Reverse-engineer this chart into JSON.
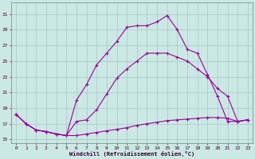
{
  "xlabel": "Windchill (Refroidissement éolien,°C)",
  "bg_color": "#cce8e4",
  "line_color": "#990099",
  "grid_color": "#aacccc",
  "x_ticks": [
    0,
    1,
    2,
    3,
    4,
    5,
    6,
    7,
    8,
    9,
    10,
    11,
    12,
    13,
    14,
    15,
    16,
    17,
    18,
    19,
    20,
    21,
    22,
    23
  ],
  "y_ticks": [
    15,
    17,
    19,
    21,
    23,
    25,
    27,
    29,
    31
  ],
  "xlim": [
    -0.5,
    23.5
  ],
  "ylim": [
    14.5,
    32.5
  ],
  "line1_x": [
    0,
    1,
    2,
    3,
    4,
    5,
    6,
    7,
    8,
    9,
    10,
    11,
    12,
    13,
    14,
    15,
    16,
    17,
    18,
    19,
    20,
    21,
    22,
    23
  ],
  "line1_y": [
    18.2,
    17.0,
    16.2,
    16.0,
    15.7,
    15.5,
    17.3,
    17.5,
    18.8,
    20.8,
    22.8,
    24.0,
    25.0,
    26.0,
    26.0,
    26.0,
    25.5,
    25.0,
    24.0,
    23.0,
    21.5,
    20.5,
    17.3,
    17.5
  ],
  "line2_x": [
    0,
    1,
    2,
    3,
    4,
    5,
    6,
    7,
    8,
    9,
    10,
    11,
    12,
    13,
    14,
    15,
    16,
    17,
    18,
    19,
    20,
    21,
    22,
    23
  ],
  "line2_y": [
    18.2,
    17.0,
    16.2,
    16.0,
    15.7,
    15.5,
    20.0,
    22.0,
    24.5,
    26.0,
    27.5,
    29.3,
    29.5,
    29.5,
    30.0,
    30.8,
    29.0,
    26.5,
    26.0,
    23.3,
    20.5,
    17.3,
    17.3,
    17.5
  ],
  "line3_x": [
    0,
    1,
    2,
    3,
    4,
    5,
    6,
    7,
    8,
    9,
    10,
    11,
    12,
    13,
    14,
    15,
    16,
    17,
    18,
    19,
    20,
    21,
    22,
    23
  ],
  "line3_y": [
    18.2,
    17.0,
    16.2,
    16.0,
    15.7,
    15.5,
    15.5,
    15.7,
    15.9,
    16.1,
    16.3,
    16.5,
    16.8,
    17.0,
    17.2,
    17.4,
    17.5,
    17.6,
    17.7,
    17.8,
    17.8,
    17.7,
    17.3,
    17.5
  ]
}
